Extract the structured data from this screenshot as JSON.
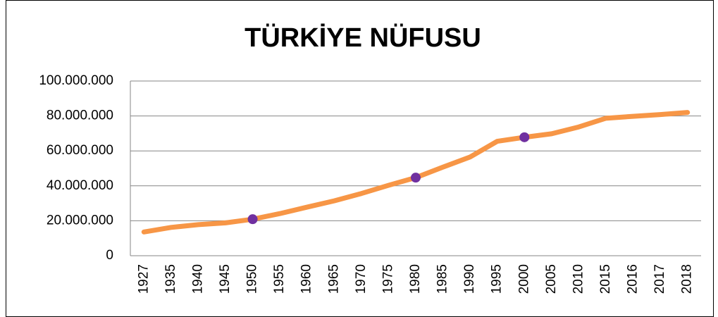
{
  "chart_data": {
    "type": "line",
    "title": "TÜRKİYE NÜFUSU",
    "categories": [
      "1927",
      "1935",
      "1940",
      "1945",
      "1950",
      "1955",
      "1960",
      "1965",
      "1970",
      "1975",
      "1980",
      "1985",
      "1990",
      "1995",
      "2000",
      "2005",
      "2010",
      "2015",
      "2016",
      "2017",
      "2018"
    ],
    "values": [
      13600000,
      16200000,
      17800000,
      18800000,
      20900000,
      24100000,
      27800000,
      31400000,
      35600000,
      40300000,
      44700000,
      50700000,
      56500000,
      65500000,
      67800000,
      69800000,
      73700000,
      78700000,
      79800000,
      80800000,
      82000000
    ],
    "color": "#f79646",
    "marker_categories": [
      "1950",
      "1980",
      "2000"
    ],
    "marker_color": "#7030a0",
    "ylim": [
      0,
      100000000
    ],
    "yticks": [
      0,
      {
        "value": 20000000,
        "label": "20.000.000"
      },
      {
        "value": 40000000,
        "label": "40.000.000"
      },
      {
        "value": 60000000,
        "label": "60.000.000"
      },
      {
        "value": 80000000,
        "label": "80.000.000"
      },
      {
        "value": 100000000,
        "label": "100.000.000"
      }
    ],
    "grid": true
  }
}
